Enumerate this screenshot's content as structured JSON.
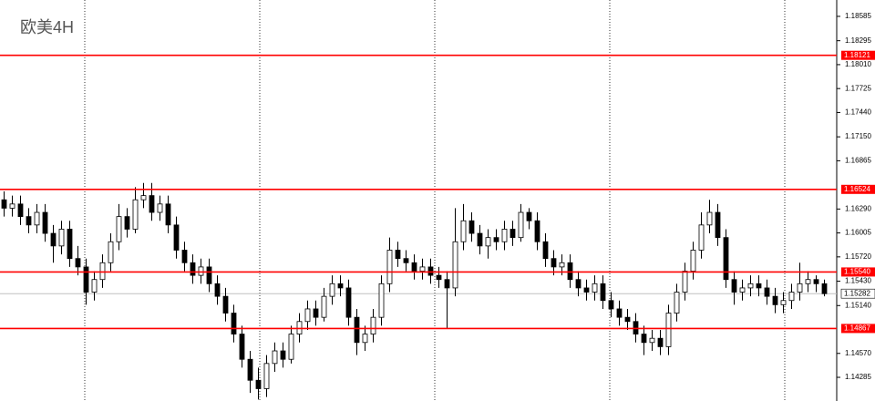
{
  "chart_data": {
    "type": "candlestick",
    "title": "欧美4H",
    "ylim": [
      1.14003,
      1.1878
    ],
    "yticks": [
      1.18585,
      1.18295,
      {
        "value": 1.1801,
        "label": "1.18010"
      },
      1.17725,
      {
        "value": 1.1744,
        "label": "1.17440"
      },
      {
        "value": 1.1715,
        "label": "1.17150"
      },
      1.16865,
      {
        "value": 1.1629,
        "label": "1.16290"
      },
      1.16005,
      {
        "value": 1.1572,
        "label": "1.15720"
      },
      {
        "value": 1.1543,
        "label": "1.15430"
      },
      {
        "value": 1.1514,
        "label": "1.15140"
      },
      {
        "value": 1.1457,
        "label": "1.14570"
      },
      1.14285
    ],
    "levels": [
      1.18121,
      1.16524,
      {
        "value": 1.1554,
        "label": "1.15540"
      },
      1.14867
    ],
    "level_color": "#ff0000",
    "last_price": 1.15282,
    "grid": true,
    "up_color": "#ffffff",
    "down_color": "#000000",
    "open": [
      1.164,
      1.163,
      1.1635,
      1.162,
      1.161,
      1.1625,
      1.16,
      1.1585,
      1.1605,
      1.157,
      1.156,
      1.153,
      1.1545,
      1.1565,
      1.159,
      1.162,
      1.1605,
      1.164,
      1.1645,
      1.1625,
      1.1635,
      1.161,
      1.158,
      1.1565,
      1.155,
      1.156,
      1.154,
      1.1525,
      1.1505,
      1.148,
      1.145,
      1.1425,
      1.1415,
      1.1445,
      1.146,
      1.145,
      1.148,
      1.1495,
      1.151,
      1.15,
      1.1525,
      1.154,
      1.1535,
      1.15,
      1.147,
      1.148,
      1.15,
      1.154,
      1.158,
      1.157,
      1.1565,
      1.1555,
      1.156,
      1.155,
      1.1545,
      1.1535,
      1.159,
      1.1615,
      1.16,
      1.1585,
      1.1595,
      1.159,
      1.1605,
      1.1595,
      1.1625,
      1.1615,
      1.159,
      1.157,
      1.156,
      1.1565,
      1.1545,
      1.1535,
      1.153,
      1.154,
      1.152,
      1.151,
      1.15,
      1.1495,
      1.148,
      1.147,
      1.1475,
      1.1465,
      1.1505,
      1.153,
      1.1555,
      1.158,
      1.161,
      1.1625,
      1.1595,
      1.1545,
      1.153,
      1.1535,
      1.154,
      1.1535,
      1.1525,
      1.1515,
      1.152,
      1.153,
      1.154,
      1.1545,
      1.154
    ],
    "high": [
      1.165,
      1.1645,
      1.1645,
      1.163,
      1.1635,
      1.1635,
      1.161,
      1.1615,
      1.1615,
      1.1585,
      1.157,
      1.1555,
      1.1575,
      1.16,
      1.1635,
      1.163,
      1.1655,
      1.166,
      1.166,
      1.1645,
      1.1645,
      1.162,
      1.159,
      1.1575,
      1.157,
      1.157,
      1.155,
      1.1535,
      1.1515,
      1.149,
      1.146,
      1.144,
      1.1455,
      1.147,
      1.147,
      1.149,
      1.1505,
      1.152,
      1.152,
      1.1535,
      1.155,
      1.155,
      1.1545,
      1.151,
      1.149,
      1.151,
      1.155,
      1.1595,
      1.159,
      1.158,
      1.1575,
      1.157,
      1.157,
      1.156,
      1.1555,
      1.163,
      1.1635,
      1.1625,
      1.161,
      1.1605,
      1.1605,
      1.1615,
      1.1615,
      1.1635,
      1.163,
      1.1625,
      1.16,
      1.158,
      1.1575,
      1.1575,
      1.1555,
      1.1545,
      1.155,
      1.155,
      1.153,
      1.152,
      1.151,
      1.1505,
      1.149,
      1.1485,
      1.1485,
      1.1515,
      1.154,
      1.1565,
      1.159,
      1.1625,
      1.164,
      1.1635,
      1.1605,
      1.1555,
      1.1545,
      1.155,
      1.155,
      1.1545,
      1.1535,
      1.153,
      1.154,
      1.1565,
      1.1555,
      1.155,
      1.1545
    ],
    "low": [
      1.162,
      1.162,
      1.161,
      1.16,
      1.16,
      1.159,
      1.1565,
      1.1575,
      1.156,
      1.155,
      1.1515,
      1.152,
      1.1535,
      1.1555,
      1.158,
      1.1595,
      1.16,
      1.163,
      1.1615,
      1.1615,
      1.16,
      1.157,
      1.1555,
      1.154,
      1.154,
      1.153,
      1.1515,
      1.1495,
      1.147,
      1.144,
      1.141,
      1.1402,
      1.1405,
      1.1435,
      1.144,
      1.1445,
      1.147,
      1.1485,
      1.149,
      1.1495,
      1.1515,
      1.1525,
      1.149,
      1.1455,
      1.146,
      1.147,
      1.149,
      1.153,
      1.156,
      1.1555,
      1.1545,
      1.1545,
      1.154,
      1.1535,
      1.1487,
      1.1525,
      1.158,
      1.159,
      1.1575,
      1.157,
      1.158,
      1.158,
      1.1585,
      1.159,
      1.1605,
      1.158,
      1.156,
      1.155,
      1.155,
      1.1535,
      1.1525,
      1.152,
      1.152,
      1.151,
      1.15,
      1.149,
      1.1485,
      1.147,
      1.1455,
      1.146,
      1.1455,
      1.1455,
      1.1495,
      1.152,
      1.1545,
      1.157,
      1.16,
      1.1585,
      1.1535,
      1.1515,
      1.152,
      1.1525,
      1.1525,
      1.1515,
      1.1505,
      1.1505,
      1.151,
      1.152,
      1.153,
      1.153,
      1.1525
    ],
    "close": [
      1.163,
      1.1635,
      1.162,
      1.161,
      1.1625,
      1.16,
      1.1585,
      1.1605,
      1.157,
      1.156,
      1.153,
      1.1545,
      1.1565,
      1.159,
      1.162,
      1.1605,
      1.164,
      1.1645,
      1.1625,
      1.1635,
      1.161,
      1.158,
      1.1565,
      1.155,
      1.156,
      1.154,
      1.1525,
      1.1505,
      1.148,
      1.145,
      1.1425,
      1.1415,
      1.1445,
      1.146,
      1.145,
      1.148,
      1.1495,
      1.151,
      1.15,
      1.1525,
      1.154,
      1.1535,
      1.15,
      1.147,
      1.148,
      1.15,
      1.154,
      1.158,
      1.157,
      1.1565,
      1.1555,
      1.156,
      1.155,
      1.1545,
      1.1535,
      1.159,
      1.1615,
      1.16,
      1.1585,
      1.1595,
      1.159,
      1.1605,
      1.1595,
      1.1625,
      1.1615,
      1.159,
      1.157,
      1.156,
      1.1565,
      1.1545,
      1.1535,
      1.153,
      1.154,
      1.152,
      1.151,
      1.15,
      1.1495,
      1.148,
      1.147,
      1.1475,
      1.1465,
      1.1505,
      1.153,
      1.1555,
      1.158,
      1.161,
      1.1625,
      1.1595,
      1.1545,
      1.153,
      1.1535,
      1.154,
      1.1535,
      1.1525,
      1.1515,
      1.152,
      1.153,
      1.154,
      1.1545,
      1.154,
      1.15282
    ]
  }
}
